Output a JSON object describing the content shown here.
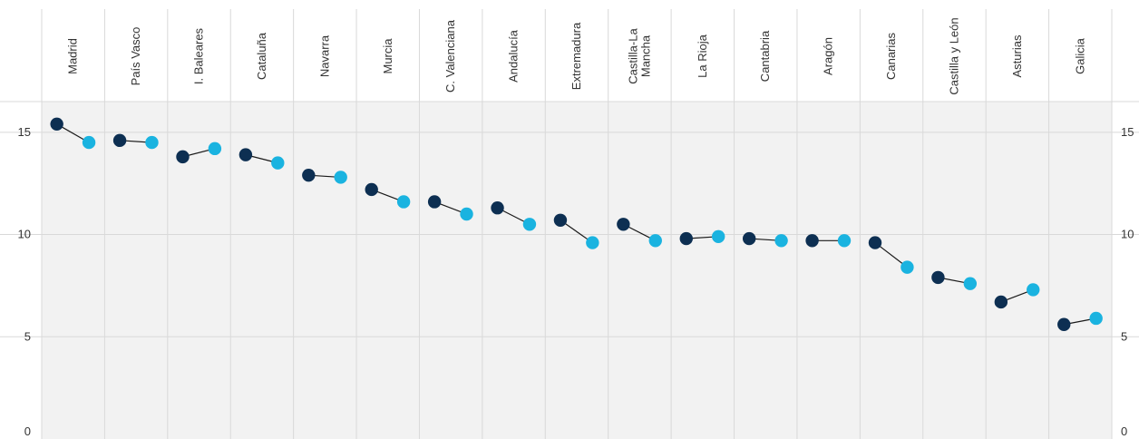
{
  "chart_data": {
    "type": "scatter",
    "title": "",
    "xlabel": "",
    "ylabel": "",
    "ylim": [
      0,
      16.5
    ],
    "yticks": [
      0,
      5,
      10,
      15
    ],
    "grid": true,
    "legend": "none",
    "colors": {
      "series_1": "#0d2f52",
      "series_2": "#1ab3e0",
      "connector": "#1a1a1a",
      "plot_bg": "#f2f2f2",
      "grid": "#d9d9d9"
    },
    "categories": [
      "Madrid",
      "País Vasco",
      "I. Baleares",
      "Cataluña",
      "Navarra",
      "Murcia",
      "C. Valenciana",
      "Andalucía",
      "Extremadura",
      "Castilla-La Mancha",
      "La Rioja",
      "Cantabria",
      "Aragón",
      "Canarias",
      "Castilla y León",
      "Asturias",
      "Galicia"
    ],
    "series": [
      {
        "values": [
          15.4,
          14.6,
          13.8,
          13.9,
          12.9,
          12.2,
          11.6,
          11.3,
          10.7,
          10.5,
          9.8,
          9.8,
          9.7,
          9.6,
          7.9,
          6.7,
          5.6
        ]
      },
      {
        "values": [
          14.5,
          14.5,
          14.2,
          13.5,
          12.8,
          11.6,
          11.0,
          10.5,
          9.6,
          9.7,
          9.9,
          9.7,
          9.7,
          8.4,
          7.6,
          7.3,
          5.9
        ]
      }
    ]
  }
}
